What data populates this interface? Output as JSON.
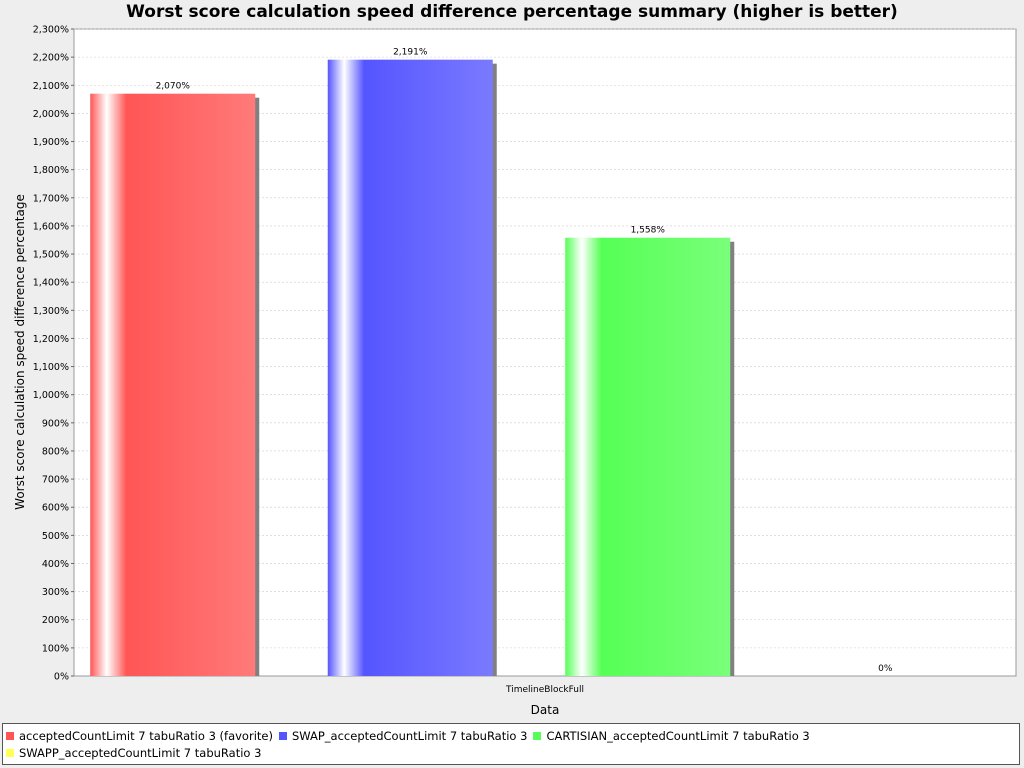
{
  "chart_data": {
    "type": "bar",
    "title": "Worst score calculation speed difference percentage summary (higher is better)",
    "xlabel": "Data",
    "ylabel": "Worst score calculation speed difference percentage",
    "categories": [
      "TimelineBlockFull"
    ],
    "series": [
      {
        "name": "acceptedCountLimit 7 tabuRatio 3 (favorite)",
        "values": [
          2070
        ],
        "label": "2,070%",
        "color": "#ff5555"
      },
      {
        "name": "SWAP_acceptedCountLimit 7 tabuRatio 3",
        "values": [
          2191
        ],
        "label": "2,191%",
        "color": "#5555ff"
      },
      {
        "name": "CARTISIAN_acceptedCountLimit 7 tabuRatio 3",
        "values": [
          1558
        ],
        "label": "1,558%",
        "color": "#55ff55"
      },
      {
        "name": "SWAPP_acceptedCountLimit 7 tabuRatio 3",
        "values": [
          0
        ],
        "label": "0%",
        "color": "#ffff55"
      }
    ],
    "ylim": [
      0,
      2300
    ],
    "yticks": [
      "0%",
      "100%",
      "200%",
      "300%",
      "400%",
      "500%",
      "600%",
      "700%",
      "800%",
      "900%",
      "1,000%",
      "1,100%",
      "1,200%",
      "1,300%",
      "1,400%",
      "1,500%",
      "1,600%",
      "1,700%",
      "1,800%",
      "1,900%",
      "2,000%",
      "2,100%",
      "2,200%",
      "2,300%"
    ],
    "grid": true,
    "legend_position": "bottom"
  }
}
